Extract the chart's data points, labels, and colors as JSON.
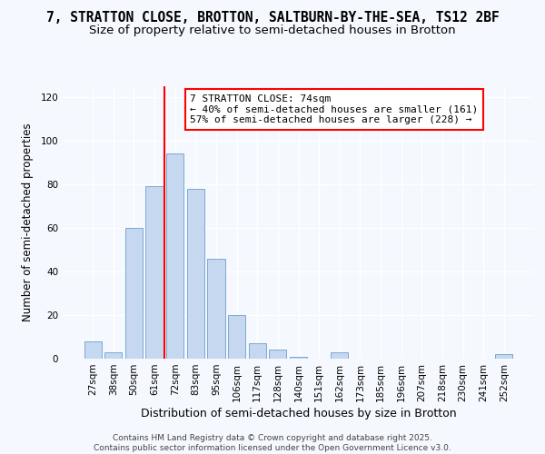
{
  "title1": "7, STRATTON CLOSE, BROTTON, SALTBURN-BY-THE-SEA, TS12 2BF",
  "title2": "Size of property relative to semi-detached houses in Brotton",
  "xlabel": "Distribution of semi-detached houses by size in Brotton",
  "ylabel": "Number of semi-detached properties",
  "categories": [
    "27sqm",
    "38sqm",
    "50sqm",
    "61sqm",
    "72sqm",
    "83sqm",
    "95sqm",
    "106sqm",
    "117sqm",
    "128sqm",
    "140sqm",
    "151sqm",
    "162sqm",
    "173sqm",
    "185sqm",
    "196sqm",
    "207sqm",
    "218sqm",
    "230sqm",
    "241sqm",
    "252sqm"
  ],
  "values": [
    8,
    3,
    60,
    79,
    94,
    78,
    46,
    20,
    7,
    4,
    1,
    0,
    3,
    0,
    0,
    0,
    0,
    0,
    0,
    0,
    2
  ],
  "bar_color": "#c5d8f0",
  "bar_edge_color": "#7aaad0",
  "red_line_x": 3.5,
  "annotation_line1": "7 STRATTON CLOSE: 74sqm",
  "annotation_line2": "← 40% of semi-detached houses are smaller (161)",
  "annotation_line3": "57% of semi-detached houses are larger (228) →",
  "ylim": [
    0,
    125
  ],
  "yticks": [
    0,
    20,
    40,
    60,
    80,
    100,
    120
  ],
  "footer": "Contains HM Land Registry data © Crown copyright and database right 2025.\nContains public sector information licensed under the Open Government Licence v3.0.",
  "bg_color": "#f5f8fe",
  "plot_bg_color": "#f5f8fe",
  "grid_color": "#ffffff",
  "title1_fontsize": 10.5,
  "title2_fontsize": 9.5,
  "xlabel_fontsize": 9,
  "ylabel_fontsize": 8.5,
  "tick_fontsize": 7.5,
  "footer_fontsize": 6.5,
  "ann_fontsize": 8
}
